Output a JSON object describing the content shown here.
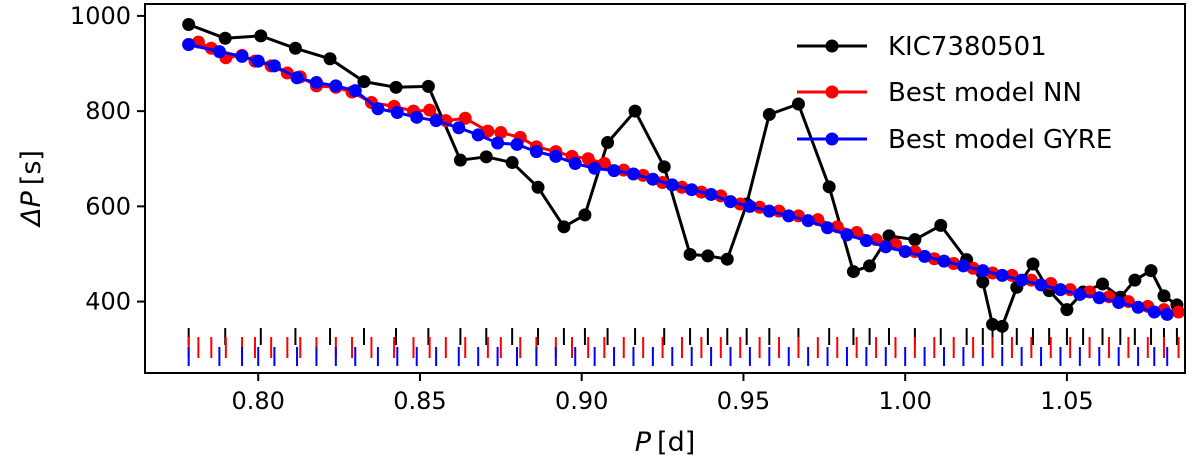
{
  "chart_data": {
    "type": "line",
    "xlabel_prefix": "P",
    "xlabel_unit": "[d]",
    "ylabel_prefix": "ΔP",
    "ylabel_unit": "[s]",
    "xlim": [
      0.765,
      1.0865
    ],
    "ylim": [
      250,
      1025
    ],
    "xticks": [
      0.8,
      0.85,
      0.9,
      0.95,
      1.0,
      1.05
    ],
    "xtick_labels": [
      "0.80",
      "0.85",
      "0.90",
      "0.95",
      "1.00",
      "1.05"
    ],
    "yticks": [
      400,
      600,
      800,
      1000
    ],
    "ytick_labels": [
      "400",
      "600",
      "800",
      "1000"
    ],
    "grid": false,
    "legend_position": "top-right",
    "series": [
      {
        "name": "KIC7380501",
        "color": "#000000",
        "x": [
          0.7785,
          0.7898,
          0.8008,
          0.8115,
          0.8222,
          0.8327,
          0.8426,
          0.8526,
          0.8625,
          0.8705,
          0.8785,
          0.8865,
          0.8945,
          0.901,
          0.908,
          0.9165,
          0.9255,
          0.9335,
          0.939,
          0.945,
          0.951,
          0.958,
          0.967,
          0.9765,
          0.984,
          0.989,
          0.995,
          1.003,
          1.011,
          1.019,
          1.024,
          1.027,
          1.03,
          1.0345,
          1.0395,
          1.0445,
          1.05,
          1.055,
          1.061,
          1.0665,
          1.071,
          1.076,
          1.08,
          1.084
        ],
        "y": [
          982,
          953,
          958,
          932,
          910,
          862,
          850,
          852,
          697,
          704,
          692,
          640,
          557,
          582,
          734,
          800,
          683,
          499,
          496,
          489,
          605,
          793,
          815,
          641,
          463,
          475,
          538,
          530,
          560,
          488,
          441,
          352,
          348,
          430,
          479,
          423,
          383,
          420,
          437,
          409,
          445,
          465,
          412,
          393
        ]
      },
      {
        "name": "Best model NN",
        "color": "#ff0000",
        "x": [
          0.7785,
          0.7815,
          0.7855,
          0.79,
          0.795,
          0.799,
          0.804,
          0.809,
          0.813,
          0.818,
          0.824,
          0.829,
          0.835,
          0.842,
          0.848,
          0.853,
          0.858,
          0.864,
          0.871,
          0.875,
          0.881,
          0.886,
          0.892,
          0.897,
          0.902,
          0.907,
          0.913,
          0.919,
          0.925,
          0.931,
          0.937,
          0.943,
          0.949,
          0.955,
          0.961,
          0.967,
          0.973,
          0.979,
          0.985,
          0.991,
          0.997,
          1.003,
          1.009,
          1.015,
          1.021,
          1.027,
          1.033,
          1.039,
          1.045,
          1.051,
          1.057,
          1.063,
          1.069,
          1.075,
          1.08,
          1.0845
        ],
        "y": [
          940,
          945,
          932,
          912,
          917,
          905,
          895,
          880,
          872,
          853,
          850,
          840,
          818,
          810,
          800,
          802,
          780,
          785,
          758,
          755,
          745,
          725,
          715,
          705,
          700,
          690,
          676,
          665,
          650,
          640,
          630,
          622,
          605,
          598,
          590,
          580,
          572,
          557,
          545,
          530,
          520,
          505,
          490,
          480,
          470,
          460,
          455,
          445,
          438,
          425,
          420,
          410,
          400,
          390,
          383,
          378
        ]
      },
      {
        "name": "Best model GYRE",
        "color": "#0000ff",
        "x": [
          0.7785,
          0.788,
          0.795,
          0.8,
          0.805,
          0.812,
          0.818,
          0.824,
          0.83,
          0.837,
          0.843,
          0.849,
          0.855,
          0.862,
          0.868,
          0.874,
          0.88,
          0.886,
          0.892,
          0.898,
          0.904,
          0.91,
          0.916,
          0.922,
          0.928,
          0.934,
          0.94,
          0.946,
          0.952,
          0.958,
          0.964,
          0.97,
          0.976,
          0.982,
          0.988,
          0.994,
          1.0,
          1.006,
          1.012,
          1.018,
          1.024,
          1.03,
          1.036,
          1.042,
          1.048,
          1.054,
          1.06,
          1.066,
          1.072,
          1.077,
          1.081
        ],
        "y": [
          940,
          925,
          915,
          905,
          895,
          870,
          860,
          853,
          843,
          805,
          797,
          787,
          780,
          765,
          750,
          733,
          730,
          715,
          705,
          690,
          680,
          675,
          668,
          657,
          645,
          635,
          625,
          610,
          600,
          590,
          580,
          570,
          555,
          540,
          528,
          515,
          505,
          495,
          485,
          475,
          465,
          455,
          445,
          435,
          425,
          415,
          408,
          398,
          388,
          378,
          373
        ]
      }
    ],
    "period_markers": [
      {
        "series": "KIC7380501",
        "color": "#000000",
        "row": "top",
        "x": [
          0.7785,
          0.7898,
          0.8008,
          0.8115,
          0.8222,
          0.8327,
          0.8426,
          0.8526,
          0.8625,
          0.8705,
          0.8785,
          0.8865,
          0.8945,
          0.901,
          0.908,
          0.9165,
          0.9255,
          0.9335,
          0.939,
          0.945,
          0.951,
          0.958,
          0.967,
          0.9765,
          0.984,
          0.989,
          0.995,
          1.003,
          1.011,
          1.019,
          1.024,
          1.027,
          1.03,
          1.0345,
          1.0395,
          1.0445,
          1.05,
          1.055,
          1.061,
          1.0665,
          1.071,
          1.076,
          1.08,
          1.084
        ]
      },
      {
        "series": "Best model NN",
        "color": "#ff0000",
        "row": "middle",
        "x": [
          0.7785,
          0.7815,
          0.7855,
          0.79,
          0.795,
          0.799,
          0.804,
          0.809,
          0.813,
          0.818,
          0.824,
          0.829,
          0.835,
          0.842,
          0.848,
          0.853,
          0.858,
          0.864,
          0.871,
          0.875,
          0.881,
          0.886,
          0.892,
          0.897,
          0.902,
          0.907,
          0.913,
          0.919,
          0.925,
          0.931,
          0.937,
          0.943,
          0.949,
          0.955,
          0.961,
          0.967,
          0.973,
          0.979,
          0.985,
          0.991,
          0.997,
          1.003,
          1.009,
          1.015,
          1.021,
          1.027,
          1.033,
          1.039,
          1.045,
          1.051,
          1.057,
          1.063,
          1.069,
          1.075,
          1.08,
          1.0845
        ]
      },
      {
        "series": "Best model GYRE",
        "color": "#0000ff",
        "row": "bottom",
        "x": [
          0.7785,
          0.788,
          0.795,
          0.8,
          0.805,
          0.812,
          0.818,
          0.824,
          0.83,
          0.837,
          0.843,
          0.849,
          0.855,
          0.862,
          0.868,
          0.874,
          0.88,
          0.886,
          0.892,
          0.898,
          0.904,
          0.91,
          0.916,
          0.922,
          0.928,
          0.934,
          0.94,
          0.946,
          0.952,
          0.958,
          0.964,
          0.97,
          0.976,
          0.982,
          0.988,
          0.994,
          1.0,
          1.006,
          1.012,
          1.018,
          1.024,
          1.03,
          1.036,
          1.042,
          1.048,
          1.054,
          1.06,
          1.066,
          1.072,
          1.077,
          1.081
        ]
      }
    ]
  }
}
